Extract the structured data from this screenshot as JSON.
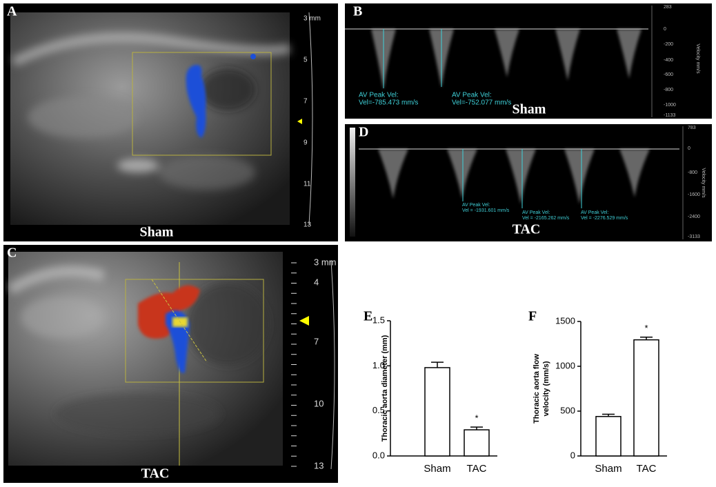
{
  "panels": {
    "A": {
      "label": "A",
      "caption": "Sham",
      "depth_ticks": [
        "3 mm",
        "5",
        "7",
        "9",
        "11",
        "13"
      ]
    },
    "B": {
      "label": "B",
      "caption": "Sham",
      "axis_title": "Velocity mm/s",
      "ticks": [
        "283",
        "0",
        "-200",
        "-400",
        "-600",
        "-800",
        "-1000",
        "-1133"
      ],
      "measurements": [
        {
          "title": "AV Peak Vel:",
          "value": "Vel=-785.473 mm/s"
        },
        {
          "title": "AV Peak Vel:",
          "value": "Vel=-752.077 mm/s"
        }
      ]
    },
    "C": {
      "label": "C",
      "caption": "TAC",
      "depth_ticks": [
        "3 mm",
        "4",
        "7",
        "10",
        "13"
      ]
    },
    "D": {
      "label": "D",
      "caption": "TAC",
      "axis_title": "Velocity mm/s",
      "ticks": [
        "783",
        "0",
        "-800",
        "-1600",
        "-2400",
        "-3133"
      ],
      "measurements": [
        {
          "title": "AV Peak Vel:",
          "value": "Vel = -1931.601 mm/s"
        },
        {
          "title": "AV Peak Vel:",
          "value": "Vel = -2165.262 mm/s"
        },
        {
          "title": "AV Peak Vel:",
          "value": "Vel = -2276.529 mm/s"
        }
      ]
    }
  },
  "chart_data": [
    {
      "type": "bar",
      "label": "E",
      "ylabel": [
        "Thoracic aorta diameter (mm)"
      ],
      "categories": [
        "Sham",
        "TAC"
      ],
      "values": [
        0.98,
        0.29
      ],
      "errors": [
        0.06,
        0.03
      ],
      "color": "#ffffff",
      "ylim": [
        0,
        1.5
      ],
      "yticks": [
        {
          "value": 0,
          "label": "0.0"
        },
        {
          "value": 0.5,
          "label": "0.5"
        },
        {
          "value": 1,
          "label": "1.0"
        },
        {
          "value": 1.5,
          "label": "1.5"
        }
      ],
      "annotations": [
        {
          "text": "*",
          "at": "TAC"
        }
      ]
    },
    {
      "type": "bar",
      "label": "F",
      "ylabel": [
        "Thoracic aorta flow",
        "velocity (mm/s)"
      ],
      "categories": [
        "Sham",
        "TAC"
      ],
      "values": [
        440,
        1295
      ],
      "errors": [
        25,
        30
      ],
      "color": "#ffffff",
      "ylim": [
        0,
        1500
      ],
      "yticks": [
        0,
        500,
        1000,
        1500
      ],
      "annotations": [
        {
          "text": "*",
          "at": "TAC"
        }
      ]
    }
  ]
}
